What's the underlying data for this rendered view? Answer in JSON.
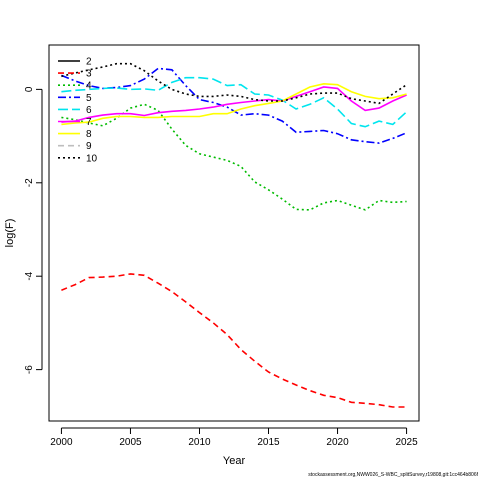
{
  "chart_data": {
    "type": "line",
    "title": "",
    "xlabel": "Year",
    "ylabel": "log(F)",
    "xlim": [
      1999.1,
      2025.9
    ],
    "ylim": [
      -7.1,
      0.95
    ],
    "grid": false,
    "legend_placement": "top-left",
    "x_ticks": [
      2000,
      2005,
      2010,
      2015,
      2020,
      2025
    ],
    "y_ticks": [
      0,
      -2,
      -4,
      -6
    ],
    "x": [
      2000,
      2001,
      2002,
      2003,
      2004,
      2005,
      2006,
      2007,
      2008,
      2009,
      2010,
      2011,
      2012,
      2013,
      2014,
      2015,
      2016,
      2017,
      2018,
      2019,
      2020,
      2021,
      2022,
      2023,
      2024,
      2025
    ],
    "series": [
      {
        "name": "2",
        "color": "#000000",
        "dash": "solid",
        "values": [
          null,
          null,
          null,
          null,
          null,
          null,
          null,
          null,
          null,
          null,
          null,
          null,
          null,
          null,
          null,
          null,
          null,
          null,
          null,
          null,
          null,
          null,
          null,
          null,
          null,
          null
        ]
      },
      {
        "name": "3",
        "color": "#ff0000",
        "dash": "dashed",
        "values": [
          -4.3,
          -4.18,
          -4.03,
          -4.02,
          -4.0,
          -3.95,
          -3.98,
          -4.15,
          -4.33,
          -4.55,
          -4.78,
          -5.0,
          -5.25,
          -5.57,
          -5.82,
          -6.05,
          -6.2,
          -6.33,
          -6.45,
          -6.55,
          -6.6,
          -6.7,
          -6.72,
          -6.75,
          -6.8,
          -6.8
        ]
      },
      {
        "name": "4",
        "color": "#00bb00",
        "dash": "dotted",
        "values": [
          -0.6,
          -0.65,
          -0.72,
          -0.78,
          -0.62,
          -0.4,
          -0.32,
          -0.45,
          -0.85,
          -1.2,
          -1.38,
          -1.45,
          -1.52,
          -1.65,
          -1.98,
          -2.15,
          -2.35,
          -2.57,
          -2.58,
          -2.43,
          -2.38,
          -2.48,
          -2.58,
          -2.38,
          -2.42,
          -2.4
        ]
      },
      {
        "name": "5",
        "color": "#0000ff",
        "dash": "dashdot",
        "values": [
          0.3,
          0.18,
          0.08,
          0.02,
          0.04,
          0.08,
          0.22,
          0.45,
          0.42,
          0.08,
          -0.22,
          -0.28,
          -0.38,
          -0.55,
          -0.52,
          -0.55,
          -0.68,
          -0.92,
          -0.9,
          -0.88,
          -0.95,
          -1.08,
          -1.12,
          -1.15,
          -1.05,
          -0.93
        ]
      },
      {
        "name": "6",
        "color": "#00e5ee",
        "dash": "longdash",
        "values": [
          -0.05,
          -0.02,
          0.0,
          0.02,
          0.03,
          0.0,
          0.01,
          -0.02,
          0.15,
          0.25,
          0.25,
          0.22,
          0.08,
          0.1,
          -0.1,
          -0.12,
          -0.23,
          -0.42,
          -0.32,
          -0.18,
          -0.42,
          -0.73,
          -0.8,
          -0.68,
          -0.75,
          -0.48
        ]
      },
      {
        "name": "7",
        "color": "#ff00ff",
        "dash": "solid",
        "values": [
          -0.7,
          -0.68,
          -0.6,
          -0.55,
          -0.52,
          -0.52,
          -0.56,
          -0.5,
          -0.47,
          -0.45,
          -0.42,
          -0.38,
          -0.32,
          -0.28,
          -0.25,
          -0.22,
          -0.25,
          -0.15,
          -0.05,
          0.05,
          0.02,
          -0.25,
          -0.45,
          -0.4,
          -0.25,
          -0.12
        ]
      },
      {
        "name": "8",
        "color": "#ffff00",
        "dash": "solid",
        "values": [
          -0.75,
          -0.72,
          -0.7,
          -0.62,
          -0.58,
          -0.58,
          -0.6,
          -0.6,
          -0.58,
          -0.58,
          -0.58,
          -0.52,
          -0.52,
          -0.42,
          -0.35,
          -0.3,
          -0.25,
          -0.1,
          0.05,
          0.12,
          0.1,
          -0.05,
          -0.15,
          -0.2,
          -0.18,
          -0.1
        ]
      },
      {
        "name": "9",
        "color": "#bebebe",
        "dash": "dashed",
        "values": [
          null,
          null,
          null,
          null,
          null,
          null,
          null,
          null,
          null,
          null,
          null,
          null,
          null,
          null,
          null,
          null,
          null,
          null,
          null,
          null,
          null,
          null,
          null,
          null,
          null,
          null
        ]
      },
      {
        "name": "10",
        "color": "#000000",
        "dash": "dotted",
        "values": [
          0.28,
          0.35,
          0.42,
          0.48,
          0.55,
          0.55,
          0.4,
          0.18,
          0.0,
          -0.1,
          -0.15,
          -0.15,
          -0.12,
          -0.15,
          -0.22,
          -0.25,
          -0.25,
          -0.18,
          -0.1,
          -0.08,
          -0.08,
          -0.2,
          -0.25,
          -0.3,
          -0.1,
          0.1
        ]
      }
    ]
  },
  "footer_text": "stockassessment.org,NWW026_S-WBC_splitSurvey,r19808,git:1cc464b806f"
}
